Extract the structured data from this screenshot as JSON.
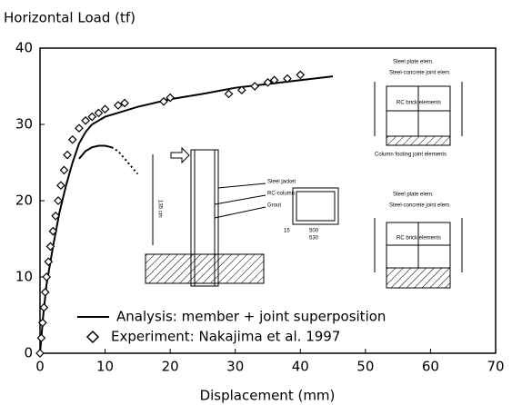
{
  "chart_data": {
    "type": "line",
    "title": "Horizontal Load  (tf)",
    "xlabel": "Displacement  (mm)",
    "xlim": [
      0,
      70
    ],
    "xticks": [
      0,
      10,
      20,
      30,
      40,
      50,
      60,
      70
    ],
    "ylim": [
      0,
      40
    ],
    "yticks": [
      0,
      10,
      20,
      30,
      40
    ],
    "series": [
      {
        "name": "Analysis: member + joint superposition",
        "color": "#000000",
        "style": "solid",
        "x": [
          0,
          0.5,
          1,
          2,
          3,
          4,
          5,
          6,
          7,
          8,
          10,
          15,
          20,
          25,
          30,
          35,
          40,
          45
        ],
        "values": [
          0,
          5,
          9,
          14,
          18.5,
          22,
          25,
          27.5,
          29,
          30,
          31,
          32.3,
          33.3,
          34,
          34.8,
          35.3,
          35.8,
          36.3
        ]
      },
      {
        "name": "Experiment: Nakajima et al. 1997",
        "color": "#000000",
        "style": "diamond",
        "x": [
          0,
          0.2,
          0.4,
          0.6,
          0.8,
          1,
          1.3,
          1.6,
          2,
          2.4,
          2.8,
          3.2,
          3.7,
          4.2,
          5,
          6,
          7,
          8,
          9,
          10,
          12,
          13,
          19,
          20,
          29,
          31,
          33,
          35,
          36,
          38,
          40
        ],
        "values": [
          0,
          2,
          4,
          6,
          8,
          10,
          12,
          14,
          16,
          18,
          20,
          22,
          24,
          26,
          28,
          29.5,
          30.5,
          31,
          31.5,
          32,
          32.5,
          32.8,
          33,
          33.5,
          34,
          34.5,
          35,
          35.5,
          35.8,
          36,
          36.5
        ]
      },
      {
        "color": "#000000",
        "style": "solid",
        "x": [
          6,
          7,
          8,
          9,
          10,
          11
        ],
        "values": [
          25.5,
          26.5,
          27,
          27.2,
          27.2,
          27
        ]
      },
      {
        "color": "#000000",
        "style": "dotted",
        "x": [
          11,
          12,
          13,
          14,
          15
        ],
        "values": [
          27,
          26.5,
          25.5,
          24.5,
          23.5
        ]
      }
    ],
    "annotations": [
      "Steel jacket",
      "RC-column",
      "Grout",
      "135 cm",
      "15",
      "500",
      "530",
      "Steel plate elem.",
      "Steel-concrete joint elem.",
      "RC brick elements",
      "Column footing joint elements",
      "Steel plate elem.",
      "Steel-concrete joint elem.",
      "RC brick elements"
    ]
  }
}
